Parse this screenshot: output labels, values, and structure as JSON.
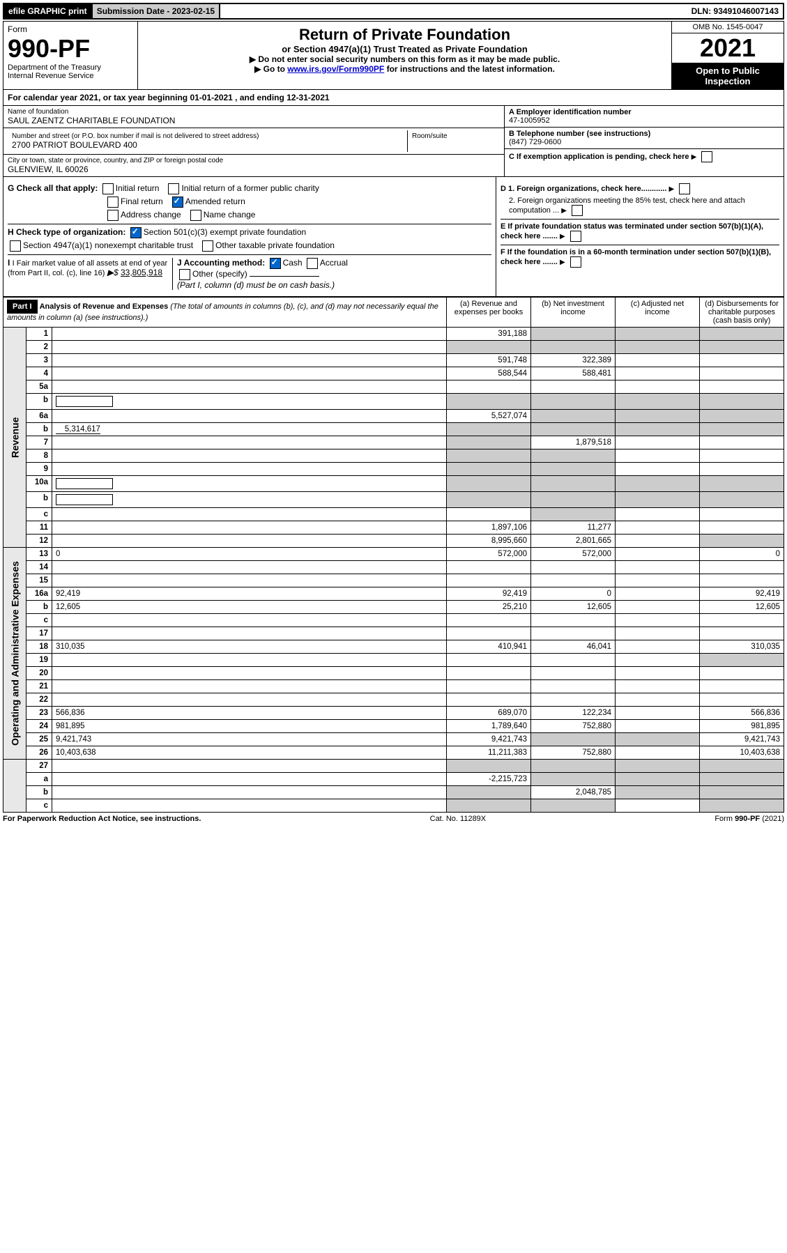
{
  "top": {
    "efile": "efile GRAPHIC print",
    "sub_label": "Submission Date - 2023-02-15",
    "dln": "DLN: 93491046007143"
  },
  "header": {
    "form_word": "Form",
    "form_no": "990-PF",
    "dept": "Department of the Treasury",
    "irs": "Internal Revenue Service",
    "title": "Return of Private Foundation",
    "subtitle": "or Section 4947(a)(1) Trust Treated as Private Foundation",
    "instr1": "▶ Do not enter social security numbers on this form as it may be made public.",
    "instr2_pre": "▶ Go to ",
    "instr2_link": "www.irs.gov/Form990PF",
    "instr2_post": " for instructions and the latest information.",
    "omb": "OMB No. 1545-0047",
    "year": "2021",
    "open": "Open to Public Inspection"
  },
  "cal": {
    "text_pre": "For calendar year 2021, or tax year beginning ",
    "begin": "01-01-2021",
    "mid": " , and ending ",
    "end": "12-31-2021"
  },
  "name_block": {
    "label": "Name of foundation",
    "value": "SAUL ZAENTZ CHARITABLE FOUNDATION",
    "addr_label": "Number and street (or P.O. box number if mail is not delivered to street address)",
    "addr": "2700 PATRIOT BOULEVARD 400",
    "room_label": "Room/suite",
    "city_label": "City or town, state or province, country, and ZIP or foreign postal code",
    "city": "GLENVIEW, IL  60026"
  },
  "right_block": {
    "a_label": "A Employer identification number",
    "a_val": "47-1005952",
    "b_label": "B Telephone number (see instructions)",
    "b_val": "(847) 729-0600",
    "c_label": "C If exemption application is pending, check here",
    "d1": "D 1. Foreign organizations, check here............",
    "d2": "2. Foreign organizations meeting the 85% test, check here and attach computation ...",
    "e": "E  If private foundation status was terminated under section 507(b)(1)(A), check here .......",
    "f": "F  If the foundation is in a 60-month termination under section 507(b)(1)(B), check here ......."
  },
  "g": {
    "label": "G Check all that apply:",
    "opts": [
      "Initial return",
      "Initial return of a former public charity",
      "Final return",
      "Amended return",
      "Address change",
      "Name change"
    ]
  },
  "h": {
    "label": "H Check type of organization:",
    "opt1": "Section 501(c)(3) exempt private foundation",
    "opt2": "Section 4947(a)(1) nonexempt charitable trust",
    "opt3": "Other taxable private foundation"
  },
  "i": {
    "label": "I Fair market value of all assets at end of year (from Part II, col. (c), line 16)",
    "val": "33,805,918"
  },
  "j": {
    "label": "J Accounting method:",
    "cash": "Cash",
    "accrual": "Accrual",
    "other": "Other (specify)",
    "note": "(Part I, column (d) must be on cash basis.)"
  },
  "part1": {
    "label": "Part I",
    "title": "Analysis of Revenue and Expenses",
    "title_note": "(The total of amounts in columns (b), (c), and (d) may not necessarily equal the amounts in column (a) (see instructions).)",
    "col_a": "(a)    Revenue and expenses per books",
    "col_b": "(b)   Net investment income",
    "col_c": "(c)  Adjusted net income",
    "col_d": "(d)  Disbursements for charitable purposes (cash basis only)"
  },
  "sections": {
    "revenue": "Revenue",
    "expenses": "Operating and Administrative Expenses"
  },
  "rows": [
    {
      "n": "1",
      "d": "",
      "a": "391,188",
      "b": "",
      "c": "",
      "shade_bcd": true
    },
    {
      "n": "2",
      "d": "",
      "a": "",
      "b": "",
      "c": "",
      "shade_all": true,
      "html": true
    },
    {
      "n": "3",
      "d": "",
      "a": "591,748",
      "b": "322,389",
      "c": ""
    },
    {
      "n": "4",
      "d": "",
      "a": "588,544",
      "b": "588,481",
      "c": ""
    },
    {
      "n": "5a",
      "d": "",
      "a": "",
      "b": "",
      "c": ""
    },
    {
      "n": "b",
      "d": "",
      "a": "",
      "b": "",
      "c": "",
      "shade_all": true,
      "inline_box": true
    },
    {
      "n": "6a",
      "d": "",
      "a": "5,527,074",
      "b": "",
      "c": "",
      "shade_bcd": true
    },
    {
      "n": "b",
      "d": "",
      "a": "",
      "b": "",
      "c": "",
      "shade_all": true,
      "inline_val": "5,314,617"
    },
    {
      "n": "7",
      "d": "",
      "a": "",
      "b": "1,879,518",
      "c": "",
      "shade_a": true
    },
    {
      "n": "8",
      "d": "",
      "a": "",
      "b": "",
      "c": "",
      "shade_ab": true
    },
    {
      "n": "9",
      "d": "",
      "a": "",
      "b": "",
      "c": "",
      "shade_ab": true
    },
    {
      "n": "10a",
      "d": "",
      "a": "",
      "b": "",
      "c": "",
      "shade_all": true,
      "inline_box": true
    },
    {
      "n": "b",
      "d": "",
      "a": "",
      "b": "",
      "c": "",
      "shade_all": true,
      "inline_box": true
    },
    {
      "n": "c",
      "d": "",
      "a": "",
      "b": "",
      "c": "",
      "shade_b": true
    },
    {
      "n": "11",
      "d": "",
      "a": "1,897,106",
      "b": "11,277",
      "c": ""
    },
    {
      "n": "12",
      "d": "",
      "a": "8,995,660",
      "b": "2,801,665",
      "c": "",
      "html": true,
      "shade_d": true
    }
  ],
  "exp_rows": [
    {
      "n": "13",
      "d": "0",
      "a": "572,000",
      "b": "572,000",
      "c": ""
    },
    {
      "n": "14",
      "d": "",
      "a": "",
      "b": "",
      "c": ""
    },
    {
      "n": "15",
      "d": "",
      "a": "",
      "b": "",
      "c": ""
    },
    {
      "n": "16a",
      "d": "92,419",
      "a": "92,419",
      "b": "0",
      "c": ""
    },
    {
      "n": "b",
      "d": "12,605",
      "a": "25,210",
      "b": "12,605",
      "c": ""
    },
    {
      "n": "c",
      "d": "",
      "a": "",
      "b": "",
      "c": ""
    },
    {
      "n": "17",
      "d": "",
      "a": "",
      "b": "",
      "c": ""
    },
    {
      "n": "18",
      "d": "310,035",
      "a": "410,941",
      "b": "46,041",
      "c": ""
    },
    {
      "n": "19",
      "d": "",
      "a": "",
      "b": "",
      "c": "",
      "shade_d": true
    },
    {
      "n": "20",
      "d": "",
      "a": "",
      "b": "",
      "c": ""
    },
    {
      "n": "21",
      "d": "",
      "a": "",
      "b": "",
      "c": ""
    },
    {
      "n": "22",
      "d": "",
      "a": "",
      "b": "",
      "c": ""
    },
    {
      "n": "23",
      "d": "566,836",
      "a": "689,070",
      "b": "122,234",
      "c": ""
    },
    {
      "n": "24",
      "d": "981,895",
      "a": "1,789,640",
      "b": "752,880",
      "c": "",
      "html": true
    },
    {
      "n": "25",
      "d": "9,421,743",
      "a": "9,421,743",
      "b": "",
      "c": "",
      "shade_bc": true
    },
    {
      "n": "26",
      "d": "10,403,638",
      "a": "11,211,383",
      "b": "752,880",
      "c": "",
      "html": true
    }
  ],
  "bottom_rows": [
    {
      "n": "27",
      "d": "",
      "a": "",
      "b": "",
      "c": "",
      "shade_all": true
    },
    {
      "n": "a",
      "d": "",
      "a": "-2,215,723",
      "b": "",
      "c": "",
      "html": true,
      "shade_bcd": true
    },
    {
      "n": "b",
      "d": "",
      "a": "",
      "b": "2,048,785",
      "c": "",
      "html": true,
      "shade_a": true,
      "shade_cd": true
    },
    {
      "n": "c",
      "d": "",
      "a": "",
      "b": "",
      "c": "",
      "html": true,
      "shade_ab": true,
      "shade_d": true
    }
  ],
  "footer": {
    "left": "For Paperwork Reduction Act Notice, see instructions.",
    "mid": "Cat. No. 11289X",
    "right": "Form 990-PF (2021)"
  },
  "colors": {
    "link": "#0000cc",
    "shade": "#cccccc",
    "check_fill": "#0066cc"
  }
}
